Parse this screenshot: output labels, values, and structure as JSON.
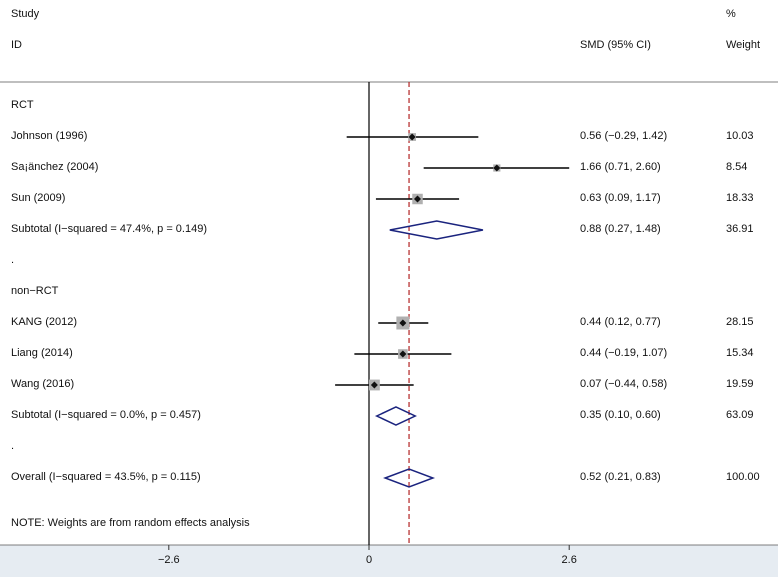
{
  "header": {
    "study_label": "Study",
    "id_label": "ID",
    "effect_label": "SMD (95% CI)",
    "percent_label": "%",
    "weight_label": "Weight"
  },
  "footer": {
    "note": "NOTE: Weights are from random effects analysis"
  },
  "colors": {
    "reference_line": "#b22222",
    "diamond": "#1a237e",
    "box": "#b0b0b0",
    "point": "#111111"
  },
  "chart_data": {
    "type": "forest",
    "null_value": 0,
    "overall_reference": 0.52,
    "xticks": [
      -2.6,
      0,
      2.6
    ],
    "xtick_labels": [
      "−2.6",
      "0",
      "2.6"
    ],
    "xlim": [
      -4.7,
      5.2
    ],
    "groups": [
      {
        "name": "RCT",
        "studies": [
          {
            "id": "Johnson (1996)",
            "smd": 0.56,
            "lo": -0.29,
            "hi": 1.42,
            "ci_text": "0.56 (−0.29, 1.42)",
            "weight": "10.03"
          },
          {
            "id": "Sa¡änchez (2004)",
            "smd": 1.66,
            "lo": 0.71,
            "hi": 2.6,
            "ci_text": "1.66 (0.71, 2.60)",
            "weight": "8.54"
          },
          {
            "id": "Sun (2009)",
            "smd": 0.63,
            "lo": 0.09,
            "hi": 1.17,
            "ci_text": "0.63 (0.09, 1.17)",
            "weight": "18.33"
          }
        ],
        "subtotal": {
          "label": "Subtotal  (I−squared = 47.4%, p = 0.149)",
          "smd": 0.88,
          "lo": 0.27,
          "hi": 1.48,
          "ci_text": "0.88 (0.27, 1.48)",
          "weight": "36.91"
        },
        "separator": "."
      },
      {
        "name": "non−RCT",
        "studies": [
          {
            "id": "KANG (2012)",
            "smd": 0.44,
            "lo": 0.12,
            "hi": 0.77,
            "ci_text": "0.44 (0.12, 0.77)",
            "weight": "28.15"
          },
          {
            "id": "Liang (2014)",
            "smd": 0.44,
            "lo": -0.19,
            "hi": 1.07,
            "ci_text": "0.44 (−0.19, 1.07)",
            "weight": "15.34"
          },
          {
            "id": "Wang (2016)",
            "smd": 0.07,
            "lo": -0.44,
            "hi": 0.58,
            "ci_text": "0.07 (−0.44, 0.58)",
            "weight": "19.59"
          }
        ],
        "subtotal": {
          "label": "Subtotal  (I−squared = 0.0%, p = 0.457)",
          "smd": 0.35,
          "lo": 0.1,
          "hi": 0.6,
          "ci_text": "0.35 (0.10, 0.60)",
          "weight": "63.09"
        },
        "separator": "."
      }
    ],
    "overall": {
      "label": "Overall  (I−squared = 43.5%, p = 0.115)",
      "smd": 0.52,
      "lo": 0.21,
      "hi": 0.83,
      "ci_text": "0.52 (0.21, 0.83)",
      "weight": "100.00"
    }
  }
}
